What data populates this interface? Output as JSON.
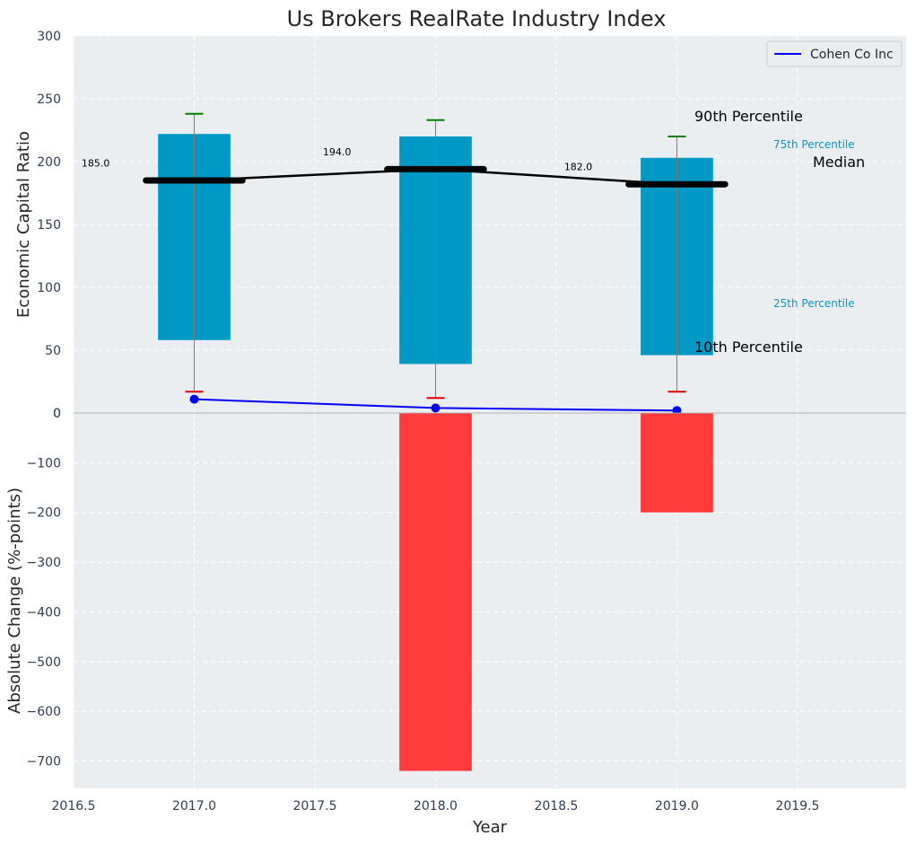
{
  "chart_data": {
    "type": "bar",
    "title": "Us Brokers RealRate Industry Index",
    "xlabel": "Year",
    "top_panel": {
      "ylabel": "Economic Capital Ratio",
      "ylim": [
        0,
        300
      ],
      "yticks": [
        "0",
        "50",
        "100",
        "150",
        "200",
        "250",
        "300"
      ],
      "categories": [
        2017,
        2018,
        2019
      ],
      "percentile_25": [
        58,
        39,
        46
      ],
      "percentile_75": [
        222,
        220,
        203
      ],
      "percentile_10": [
        17,
        12,
        17
      ],
      "percentile_90": [
        238,
        233,
        220
      ],
      "median": [
        185.0,
        194.0,
        182.0
      ],
      "median_labels": [
        "185.0",
        "194.0",
        "182.0"
      ],
      "company_series": {
        "name": "Cohen Co Inc",
        "values": [
          11,
          4,
          2
        ],
        "color": "#0000ff"
      },
      "bar_color": "#0099c6",
      "annotations": {
        "p90": "90th Percentile",
        "p75": "75th Percentile",
        "median": "Median",
        "p25": "25th Percentile",
        "p10": "10th Percentile"
      },
      "legend": {
        "label": "Cohen Co Inc",
        "position": "top-right"
      }
    },
    "bottom_panel": {
      "ylabel": "Absolute Change (%-points)",
      "ylim": [
        -755,
        0
      ],
      "yticks": [
        "0",
        "−100",
        "−200",
        "−300",
        "−400",
        "−500",
        "−600",
        "−700"
      ],
      "categories": [
        2017,
        2018,
        2019
      ],
      "values": [
        0,
        -720,
        -200
      ],
      "bar_color": "#ff3b3b"
    },
    "xlim": [
      2016.5,
      2019.95
    ],
    "xticks": [
      "2016.5",
      "2017.0",
      "2017.5",
      "2018.0",
      "2018.5",
      "2019.0",
      "2019.5"
    ],
    "grid": true
  }
}
